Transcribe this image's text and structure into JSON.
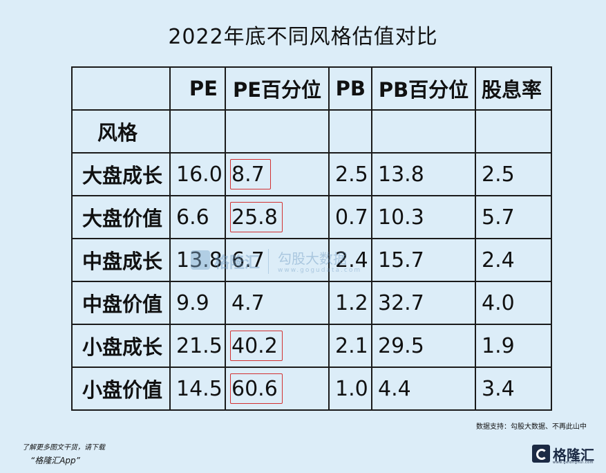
{
  "title": "2022年底不同风格估值对比",
  "chart_data": {
    "type": "table",
    "title": "2022年底不同风格估值对比",
    "columns": [
      "PE",
      "PE百分位",
      "PB",
      "PB百分位",
      "股息率"
    ],
    "row_header": "风格",
    "rows": [
      {
        "label": "大盘成长",
        "values": [
          "16.0",
          "8.7",
          "2.5",
          "13.8",
          "2.5"
        ],
        "highlight_pe_pct": true
      },
      {
        "label": "大盘价值",
        "values": [
          "6.6",
          "25.8",
          "0.7",
          "10.3",
          "5.7"
        ],
        "highlight_pe_pct": true
      },
      {
        "label": "中盘成长",
        "values": [
          "13.8",
          "6.7",
          "2.4",
          "15.7",
          "2.4"
        ],
        "highlight_pe_pct": false
      },
      {
        "label": "中盘价值",
        "values": [
          "9.9",
          "4.7",
          "1.2",
          "32.7",
          "4.0"
        ],
        "highlight_pe_pct": false
      },
      {
        "label": "小盘成长",
        "values": [
          "21.5",
          "40.2",
          "2.1",
          "29.5",
          "1.9"
        ],
        "highlight_pe_pct": true
      },
      {
        "label": "小盘价值",
        "values": [
          "14.5",
          "60.6",
          "1.0",
          "4.4",
          "3.4"
        ],
        "highlight_pe_pct": true
      }
    ],
    "highlight_color": "#d23030"
  },
  "watermark": {
    "name": "格隆汇",
    "sub": "勾股大数据",
    "url": "www.gogudata.com"
  },
  "source": "数据支持：勾股大数据、不再此山中",
  "promo": {
    "line1": "了解更多图文干货，请下载",
    "line2": "“格隆汇App”"
  },
  "brand": {
    "name": "格隆汇",
    "url": "www.gelonghui.com"
  },
  "colors": {
    "background": "#dcedf8",
    "border": "#1a1a1a",
    "brand": "#1b2a44"
  }
}
